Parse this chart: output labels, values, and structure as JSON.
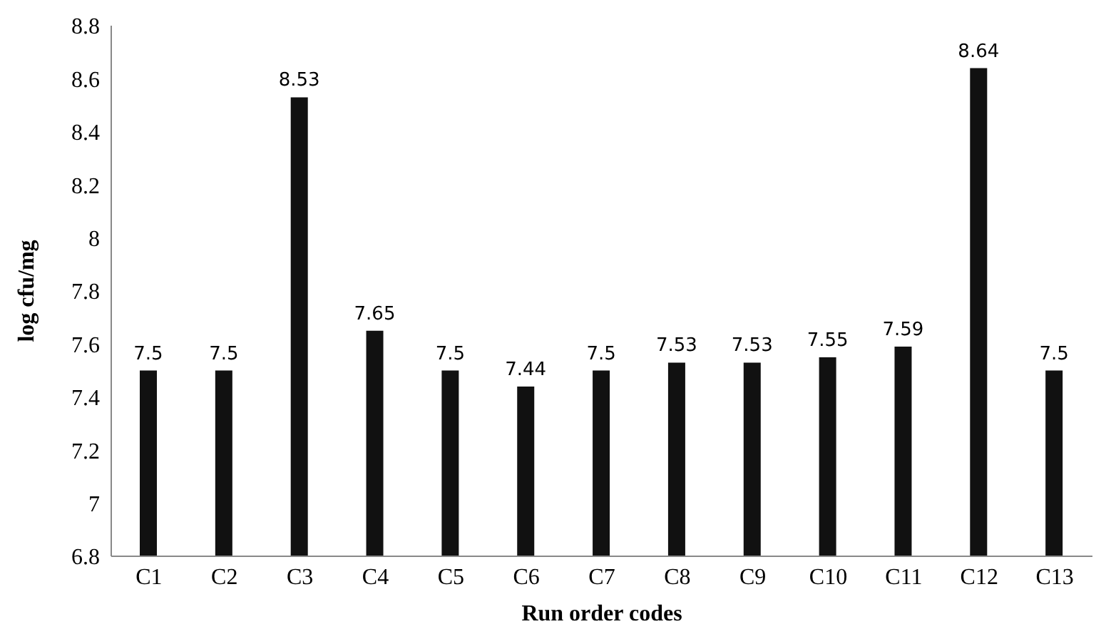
{
  "chart_data": {
    "type": "bar",
    "xlabel": "Run order codes",
    "ylabel": "log cfu/mg",
    "categories": [
      "C1",
      "C2",
      "C3",
      "C4",
      "C5",
      "C6",
      "C7",
      "C8",
      "C9",
      "C10",
      "C11",
      "C12",
      "C13"
    ],
    "values": [
      7.5,
      7.5,
      8.53,
      7.65,
      7.5,
      7.44,
      7.5,
      7.53,
      7.53,
      7.55,
      7.59,
      8.64,
      7.5
    ],
    "color": "#111111",
    "ylim": [
      6.8,
      8.8
    ],
    "yticks": [
      6.8,
      7,
      7.2,
      7.4,
      7.6,
      7.8,
      8,
      8.2,
      8.4,
      8.6,
      8.8
    ],
    "grid": false,
    "legend": false,
    "data_labels": true
  }
}
